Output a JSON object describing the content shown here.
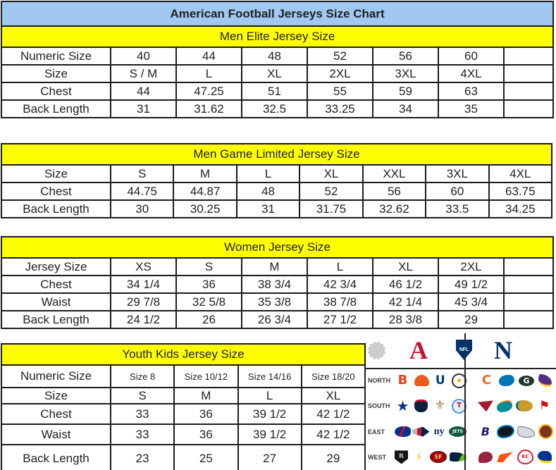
{
  "title": "American Football Jerseys Size Chart",
  "colors": {
    "title_bg": "#A0C8F0",
    "section_header_bg": "#FFFF00",
    "border": "#1B1B1B"
  },
  "tables": {
    "men_elite": {
      "header": "Men Elite Jersey Size",
      "rows": [
        {
          "label": "Numeric Size",
          "cells": [
            "40",
            "44",
            "48",
            "52",
            "56",
            "60",
            ""
          ]
        },
        {
          "label": "Size",
          "cells": [
            "S / M",
            "L",
            "XL",
            "2XL",
            "3XL",
            "4XL",
            ""
          ]
        },
        {
          "label": "Chest",
          "cells": [
            "44",
            "47.25",
            "51",
            "55",
            "59",
            "63",
            ""
          ]
        },
        {
          "label": "Back Length",
          "cells": [
            "31",
            "31.62",
            "32.5",
            "33.25",
            "34",
            "35",
            ""
          ]
        }
      ]
    },
    "men_game_limited": {
      "header": "Men Game Limited Jersey Size",
      "rows": [
        {
          "label": "Size",
          "cells": [
            "S",
            "M",
            "L",
            "XL",
            "XXL",
            "3XL",
            "4XL"
          ]
        },
        {
          "label": "Chest",
          "cells": [
            "44.75",
            "44.87",
            "48",
            "52",
            "56",
            "60",
            "63.75"
          ]
        },
        {
          "label": "Back Length",
          "cells": [
            "30",
            "30.25",
            "31",
            "31.75",
            "32.62",
            "33.5",
            "34.25"
          ]
        }
      ]
    },
    "women": {
      "header": "Women Jersey Size",
      "rows": [
        {
          "label": "Jersey Size",
          "cells": [
            "XS",
            "S",
            "M",
            "L",
            "XL",
            "2XL",
            ""
          ]
        },
        {
          "label": "Chest",
          "cells": [
            "34 1/4",
            "36",
            "38 3/4",
            "42 3/4",
            "46 1/2",
            "49 1/2",
            ""
          ]
        },
        {
          "label": "Waist",
          "cells": [
            "29 7/8",
            "32 5/8",
            "35 3/8",
            "38 7/8",
            "42 1/4",
            "45 3/4",
            ""
          ]
        },
        {
          "label": "Back Length",
          "cells": [
            "24 1/2",
            "26",
            "26 3/4",
            "27 1/2",
            "28 3/8",
            "29",
            ""
          ]
        }
      ]
    },
    "youth": {
      "header": "Youth Kids Jersey Size",
      "rows": [
        {
          "label": "Numeric Size",
          "cells": [
            "Size 8",
            "Size 10/12",
            "Size 14/16",
            "Size 18/20"
          ]
        },
        {
          "label": "Size",
          "cells": [
            "S",
            "M",
            "L",
            "XL"
          ]
        },
        {
          "label": "Chest",
          "cells": [
            "33",
            "36",
            "39 1/2",
            "42 1/2"
          ]
        },
        {
          "label": "Waist",
          "cells": [
            "33",
            "36",
            "39 1/2",
            "42 1/2"
          ]
        },
        {
          "label": "Back Length",
          "cells": [
            "23",
            "25",
            "27",
            "29"
          ]
        }
      ]
    }
  },
  "nfl": {
    "conference_icons": {
      "starburst": {
        "bg": "#CDCDCD"
      },
      "afc": {
        "glyph": "A",
        "fg": "#C8102E"
      },
      "nfl_shield": {
        "text": "NFL",
        "fg": "#FFFFFF",
        "bg": "#013369"
      },
      "nfc": {
        "glyph": "N",
        "fg": "#013369"
      }
    },
    "divisions": [
      {
        "label": "NORTH",
        "afc": [
          "bengals",
          "browns",
          "colts",
          "steelers"
        ],
        "nfc": [
          "bears",
          "lions",
          "packers",
          "vikings"
        ]
      },
      {
        "label": "SOUTH",
        "afc": [
          "cowboys",
          "texans",
          "saints",
          "titans"
        ],
        "nfc": [
          "falcons",
          "dolphins",
          "jaguars",
          "buccaneers"
        ]
      },
      {
        "label": "EAST",
        "afc": [
          "bills",
          "patriots",
          "giants",
          "jets"
        ],
        "nfc": [
          "ravens",
          "panthers",
          "eagles",
          "redskins"
        ]
      },
      {
        "label": "WEST",
        "afc": [
          "raiders",
          "chargers",
          "niners",
          "seahawks"
        ],
        "nfc": [
          "cardinals",
          "broncos",
          "chiefs",
          "rams"
        ]
      }
    ],
    "teams": {
      "bengals": {
        "glyph": "B",
        "fg": "#F03A17",
        "bg": ""
      },
      "browns": {
        "glyph": "",
        "fg": "",
        "bg": "#EB5B1E"
      },
      "colts": {
        "glyph": "U",
        "fg": "#013A81",
        "bg": ""
      },
      "steelers": {
        "glyph": "◆",
        "fg": "#F2A900",
        "bg": "#FFFFFF"
      },
      "bears": {
        "glyph": "C",
        "fg": "#F26522",
        "bg": ""
      },
      "lions": {
        "glyph": "",
        "fg": "",
        "bg": "#0076B6"
      },
      "packers": {
        "glyph": "G",
        "fg": "#FFFFFF",
        "bg": "#203731"
      },
      "vikings": {
        "glyph": "",
        "fg": "",
        "bg": "#582C83"
      },
      "cowboys": {
        "glyph": "★",
        "fg": "#003087",
        "bg": ""
      },
      "texans": {
        "glyph": "",
        "fg": "",
        "bg": "#0B2239"
      },
      "saints": {
        "glyph": "⚜",
        "fg": "#A08A58",
        "bg": ""
      },
      "titans": {
        "glyph": "T",
        "fg": "#C8102E",
        "bg": "#E9EBF2"
      },
      "falcons": {
        "glyph": "",
        "fg": "",
        "bg": "#A6192E"
      },
      "dolphins": {
        "glyph": "",
        "fg": "",
        "bg": "#008E97"
      },
      "jaguars": {
        "glyph": "",
        "fg": "",
        "bg": "#C99A2C"
      },
      "buccaneers": {
        "glyph": "⚑",
        "fg": "#D50A0A",
        "bg": ""
      },
      "bills": {
        "glyph": "",
        "fg": "",
        "bg": "#00338D"
      },
      "patriots": {
        "glyph": "",
        "fg": "",
        "bg": ""
      },
      "giants": {
        "glyph": "ny",
        "fg": "#0B2265",
        "bg": ""
      },
      "jets": {
        "glyph": "JETS",
        "fg": "#FFFFFF",
        "bg": "#115740"
      },
      "ravens": {
        "glyph": "B",
        "fg": "#241773",
        "bg": ""
      },
      "panthers": {
        "glyph": "",
        "fg": "",
        "bg": "#101820"
      },
      "eagles": {
        "glyph": "",
        "fg": "",
        "bg": "#D5DBDE"
      },
      "redskins": {
        "glyph": "",
        "fg": "",
        "bg": "#7D3420"
      },
      "raiders": {
        "glyph": "R",
        "fg": "#B8BDC1",
        "bg": "#141414"
      },
      "chargers": {
        "glyph": "⚡",
        "fg": "#FFB81C",
        "bg": ""
      },
      "niners": {
        "glyph": "SF",
        "fg": "#EDC8A3",
        "bg": "#AA0000"
      },
      "seahawks": {
        "glyph": "",
        "fg": "",
        "bg": ""
      },
      "cardinals": {
        "glyph": "",
        "fg": "",
        "bg": "#97233F"
      },
      "broncos": {
        "glyph": "",
        "fg": "",
        "bg": "#FB4F14"
      },
      "chiefs": {
        "glyph": "KC",
        "fg": "#E31837",
        "bg": "#FFFFFF"
      },
      "rams": {
        "glyph": "",
        "fg": "",
        "bg": "#003594"
      }
    }
  }
}
